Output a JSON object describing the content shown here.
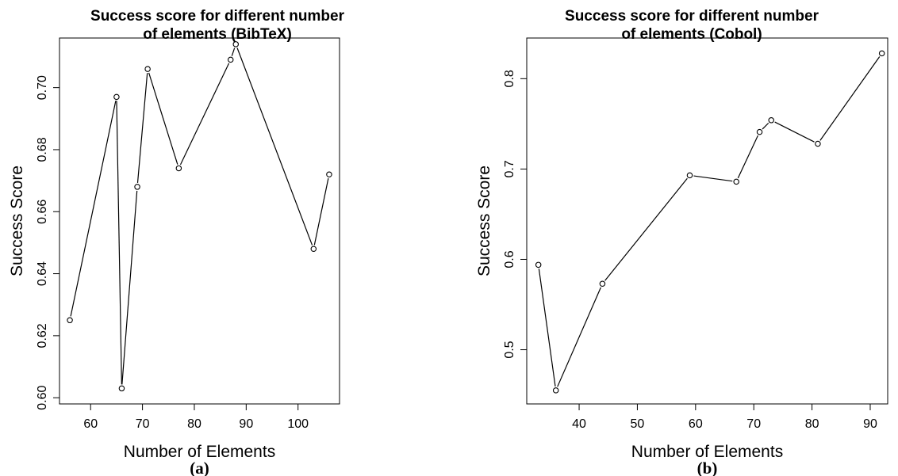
{
  "chart_data": [
    {
      "type": "line",
      "title": "Success score for different number of elements (BibTeX)",
      "title_lines": [
        "Success score for different number",
        "of elements (BibTeX)"
      ],
      "xlabel": "Number of Elements",
      "ylabel": "Success Score",
      "panel_label": "(a)",
      "xlim": [
        54,
        108
      ],
      "ylim": [
        0.598,
        0.716
      ],
      "x_ticks": [
        60,
        70,
        80,
        90,
        100
      ],
      "y_ticks": [
        0.6,
        0.62,
        0.64,
        0.66,
        0.68,
        0.7
      ],
      "x_tick_labels": [
        "60",
        "70",
        "80",
        "90",
        "100"
      ],
      "y_tick_labels": [
        "0.60",
        "0.62",
        "0.64",
        "0.66",
        "0.68",
        "0.70"
      ],
      "grid": false,
      "marker": "open-circle",
      "x": [
        56,
        65,
        66,
        69,
        71,
        77,
        87,
        88,
        103,
        106
      ],
      "y": [
        0.625,
        0.697,
        0.603,
        0.668,
        0.706,
        0.674,
        0.709,
        0.714,
        0.648,
        0.672
      ]
    },
    {
      "type": "line",
      "title": "Success score for different number of elements (Cobol)",
      "title_lines": [
        "Success score for different number",
        "of elements (Cobol)"
      ],
      "xlabel": "Number of Elements",
      "ylabel": "Success Score",
      "panel_label": "(b)",
      "xlim": [
        31,
        93
      ],
      "ylim": [
        0.44,
        0.845
      ],
      "x_ticks": [
        40,
        50,
        60,
        70,
        80,
        90
      ],
      "y_ticks": [
        0.5,
        0.6,
        0.7,
        0.8
      ],
      "x_tick_labels": [
        "40",
        "50",
        "60",
        "70",
        "80",
        "90"
      ],
      "y_tick_labels": [
        "0.5",
        "0.6",
        "0.7",
        "0.8"
      ],
      "grid": false,
      "marker": "open-circle",
      "x": [
        33,
        36,
        44,
        59,
        67,
        71,
        73,
        81,
        92
      ],
      "y": [
        0.594,
        0.455,
        0.573,
        0.693,
        0.686,
        0.741,
        0.754,
        0.728,
        0.828
      ]
    }
  ]
}
